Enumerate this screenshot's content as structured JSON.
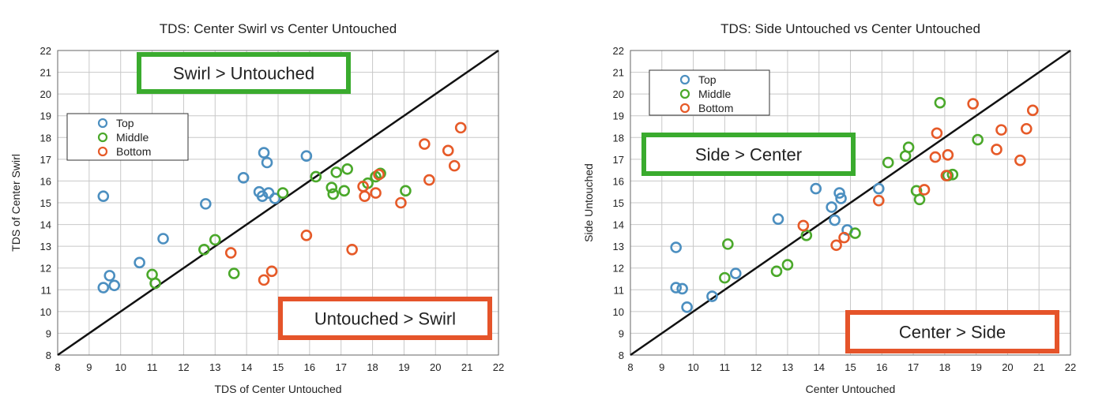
{
  "chart_data": [
    {
      "type": "scatter",
      "title": "TDS: Center Swirl vs Center Untouched",
      "xlabel": "TDS of Center Untouched",
      "ylabel": "TDS of Center Swirl",
      "xlim": [
        8,
        22
      ],
      "ylim": [
        8,
        22
      ],
      "grid": true,
      "legend_position": "upper-left",
      "reference_line": "y = x",
      "annotations": [
        {
          "text": "Swirl > Untouched",
          "color": "#3aab2e",
          "region": "upper-left"
        },
        {
          "text": "Untouched > Swirl",
          "color": "#e5542a",
          "region": "lower-right"
        }
      ],
      "series": [
        {
          "name": "Top",
          "color": "#4c8fc0",
          "x": [
            9.45,
            9.45,
            9.65,
            9.8,
            10.6,
            11.35,
            12.7,
            13.9,
            14.4,
            14.5,
            14.55,
            14.65,
            14.7,
            14.9,
            15.9
          ],
          "y": [
            15.3,
            11.1,
            11.65,
            11.2,
            12.25,
            13.35,
            14.95,
            16.15,
            15.5,
            15.3,
            17.3,
            16.85,
            15.45,
            15.2,
            17.15
          ]
        },
        {
          "name": "Middle",
          "color": "#4aa82a",
          "x": [
            11.0,
            11.1,
            12.65,
            13.0,
            13.6,
            15.15,
            16.2,
            16.7,
            16.75,
            16.85,
            17.1,
            17.2,
            17.85,
            18.1,
            18.25,
            19.05
          ],
          "y": [
            11.7,
            11.3,
            12.85,
            13.3,
            11.75,
            15.45,
            16.2,
            15.7,
            15.4,
            16.4,
            15.55,
            16.55,
            15.9,
            16.2,
            16.35,
            15.55
          ]
        },
        {
          "name": "Bottom",
          "color": "#e65a28",
          "x": [
            13.5,
            14.55,
            14.8,
            15.9,
            17.35,
            17.7,
            17.75,
            18.1,
            18.2,
            18.9,
            19.65,
            19.8,
            20.4,
            20.6,
            20.8
          ],
          "y": [
            12.7,
            11.45,
            11.85,
            13.5,
            12.85,
            15.75,
            15.3,
            15.45,
            16.3,
            15.0,
            17.7,
            16.05,
            17.4,
            16.7,
            18.45
          ]
        }
      ]
    },
    {
      "type": "scatter",
      "title": "TDS: Side Untouched vs Center Untouched",
      "xlabel": "Center Untouched",
      "ylabel": "Side Untouched",
      "xlim": [
        8,
        22
      ],
      "ylim": [
        8,
        22
      ],
      "grid": true,
      "legend_position": "upper-left",
      "reference_line": "y = x",
      "annotations": [
        {
          "text": "Side > Center",
          "color": "#3aab2e",
          "region": "upper-left"
        },
        {
          "text": "Center > Side",
          "color": "#e5542a",
          "region": "lower-right"
        }
      ],
      "series": [
        {
          "name": "Top",
          "color": "#4c8fc0",
          "x": [
            9.45,
            9.45,
            9.65,
            9.8,
            10.6,
            11.35,
            12.7,
            13.9,
            14.4,
            14.5,
            14.65,
            14.7,
            14.9,
            15.9
          ],
          "y": [
            12.95,
            11.1,
            11.05,
            10.2,
            10.7,
            11.75,
            14.25,
            15.65,
            14.8,
            14.2,
            15.45,
            15.2,
            13.75,
            15.65
          ]
        },
        {
          "name": "Middle",
          "color": "#4aa82a",
          "x": [
            11.0,
            11.1,
            12.65,
            13.0,
            13.6,
            15.15,
            16.2,
            16.75,
            16.85,
            17.1,
            17.2,
            17.85,
            18.1,
            18.25,
            19.05
          ],
          "y": [
            11.55,
            13.1,
            11.85,
            12.15,
            13.5,
            13.6,
            16.85,
            17.15,
            17.55,
            15.55,
            15.15,
            19.6,
            16.25,
            16.3,
            17.9
          ]
        },
        {
          "name": "Bottom",
          "color": "#e65a28",
          "x": [
            13.5,
            14.55,
            14.8,
            15.9,
            17.35,
            17.7,
            17.75,
            18.05,
            18.1,
            18.9,
            19.65,
            19.8,
            20.4,
            20.6,
            20.8
          ],
          "y": [
            13.95,
            13.05,
            13.4,
            15.1,
            15.6,
            17.1,
            18.2,
            16.25,
            17.2,
            19.55,
            17.45,
            18.35,
            16.95,
            18.4,
            19.25
          ]
        }
      ]
    }
  ]
}
